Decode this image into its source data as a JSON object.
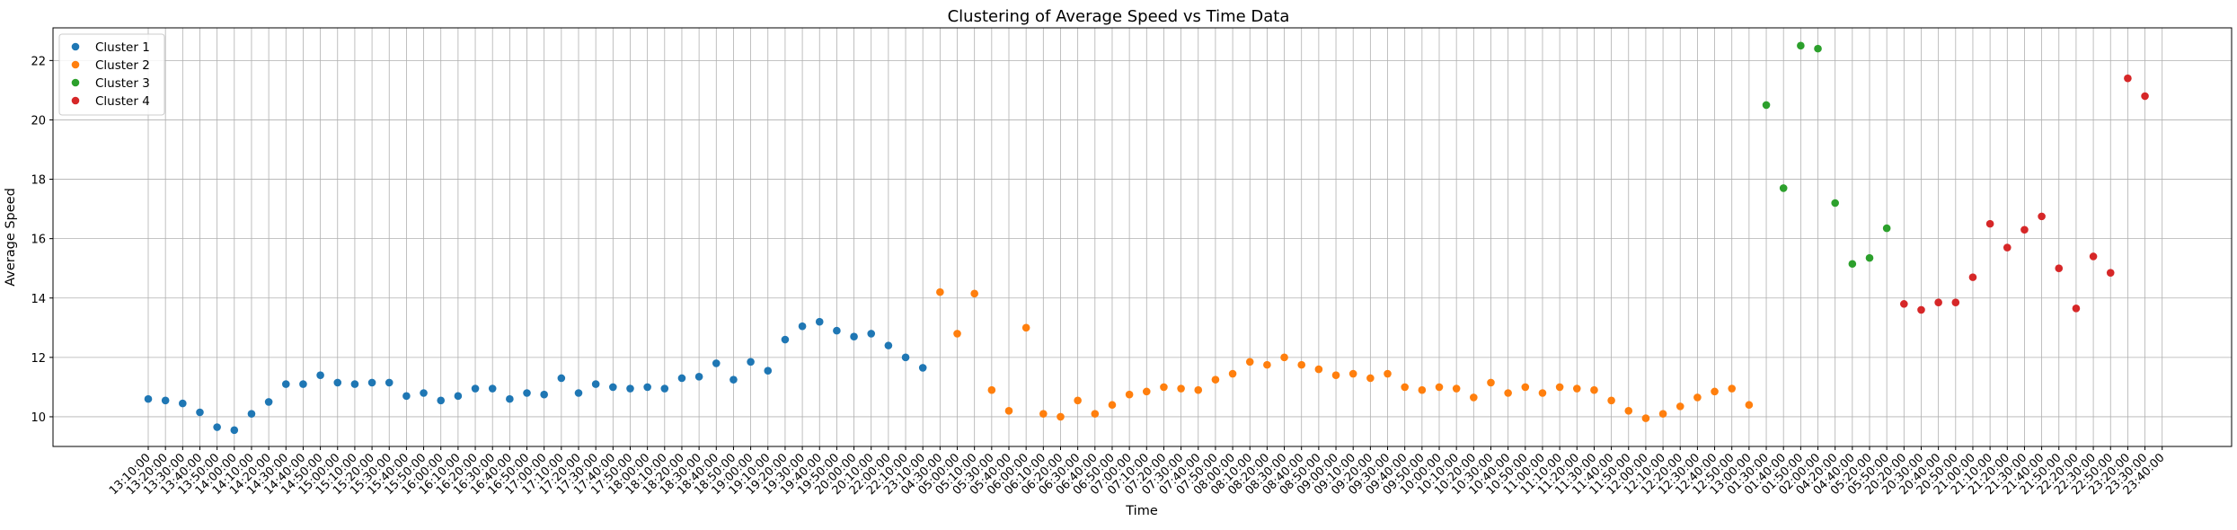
{
  "chart_data": {
    "type": "scatter",
    "title": "Clustering of Average Speed vs Time Data",
    "xlabel": "Time",
    "ylabel": "Average Speed",
    "ylim": [
      9.0,
      23.1
    ],
    "yticks": [
      10,
      12,
      14,
      16,
      18,
      20,
      22
    ],
    "grid": true,
    "legend_position": "top-left",
    "categories": [
      "13:10:00",
      "13:20:00",
      "13:30:00",
      "13:40:00",
      "13:50:00",
      "14:00:00",
      "14:10:00",
      "14:20:00",
      "14:30:00",
      "14:40:00",
      "14:50:00",
      "15:00:00",
      "15:10:00",
      "15:20:00",
      "15:30:00",
      "15:40:00",
      "15:50:00",
      "16:00:00",
      "16:10:00",
      "16:20:00",
      "16:30:00",
      "16:40:00",
      "16:50:00",
      "17:00:00",
      "17:10:00",
      "17:20:00",
      "17:30:00",
      "17:40:00",
      "17:50:00",
      "18:00:00",
      "18:10:00",
      "18:20:00",
      "18:30:00",
      "18:40:00",
      "18:50:00",
      "19:00:00",
      "19:10:00",
      "19:20:00",
      "19:30:00",
      "19:40:00",
      "19:50:00",
      "20:00:00",
      "20:10:00",
      "22:00:00",
      "22:10:00",
      "23:10:00",
      "04:30:00",
      "05:00:00",
      "05:10:00",
      "05:30:00",
      "05:40:00",
      "06:00:00",
      "06:10:00",
      "06:20:00",
      "06:30:00",
      "06:40:00",
      "06:50:00",
      "07:00:00",
      "07:10:00",
      "07:20:00",
      "07:30:00",
      "07:40:00",
      "07:50:00",
      "08:00:00",
      "08:10:00",
      "08:20:00",
      "08:30:00",
      "08:40:00",
      "08:50:00",
      "09:00:00",
      "09:10:00",
      "09:20:00",
      "09:30:00",
      "09:40:00",
      "09:50:00",
      "10:00:00",
      "10:10:00",
      "10:20:00",
      "10:30:00",
      "10:40:00",
      "10:50:00",
      "11:00:00",
      "11:10:00",
      "11:20:00",
      "11:30:00",
      "11:40:00",
      "11:50:00",
      "12:00:00",
      "12:10:00",
      "12:20:00",
      "12:30:00",
      "12:40:00",
      "12:50:00",
      "13:00:00",
      "01:30:00",
      "01:40:00",
      "01:50:00",
      "02:00:00",
      "04:20:00",
      "04:40:00",
      "05:20:00",
      "05:50:00",
      "20:20:00",
      "20:30:00",
      "20:40:00",
      "20:50:00",
      "21:00:00",
      "21:10:00",
      "21:20:00",
      "21:30:00",
      "21:40:00",
      "21:50:00",
      "22:20:00",
      "22:30:00",
      "22:50:00",
      "23:20:00",
      "23:30:00",
      "23:40:00"
    ],
    "series": [
      {
        "name": "Cluster 1",
        "color": "#1f77b4",
        "start_index": 0,
        "values": [
          10.6,
          10.55,
          10.45,
          10.15,
          9.65,
          9.55,
          10.1,
          10.5,
          11.1,
          11.1,
          11.4,
          11.15,
          11.1,
          11.15,
          11.15,
          10.7,
          10.8,
          10.55,
          10.7,
          10.95,
          10.95,
          10.6,
          10.8,
          10.75,
          11.3,
          10.8,
          11.1,
          11.0,
          10.95,
          11.0,
          10.95,
          11.3,
          11.35,
          11.8,
          11.25,
          11.85,
          11.55,
          12.6,
          13.05,
          13.2,
          12.9,
          12.7,
          12.8,
          12.4,
          12.0,
          11.65
        ]
      },
      {
        "name": "Cluster 2",
        "color": "#ff7f0e",
        "start_index": 46,
        "values": [
          14.2,
          12.8,
          14.15,
          10.9,
          10.2,
          13.0,
          10.1,
          10.0,
          10.55,
          10.1,
          10.4,
          10.75,
          10.85,
          11.0,
          10.95,
          10.9,
          11.25,
          11.45,
          11.85,
          11.75,
          12.0,
          11.75,
          11.6,
          11.4,
          11.45,
          11.3,
          11.45,
          11.0,
          10.9,
          11.0,
          10.95,
          10.65,
          11.15,
          10.8,
          11.0,
          10.8,
          11.0,
          10.95,
          10.9,
          10.55,
          10.2,
          9.95,
          10.1,
          10.35,
          10.65,
          10.85,
          10.95,
          10.4
        ]
      },
      {
        "name": "Cluster 3",
        "color": "#2ca02c",
        "start_index": 94,
        "values": [
          20.5,
          17.7,
          22.5,
          22.4,
          17.2,
          15.15,
          15.35,
          16.35
        ]
      },
      {
        "name": "Cluster 4",
        "color": "#d62728",
        "start_index": 102,
        "values": [
          13.8,
          13.6,
          13.85,
          13.85,
          14.7,
          16.5,
          15.7,
          16.3,
          16.75,
          15.0,
          13.65,
          15.4,
          14.85,
          21.4,
          20.8
        ]
      }
    ]
  }
}
